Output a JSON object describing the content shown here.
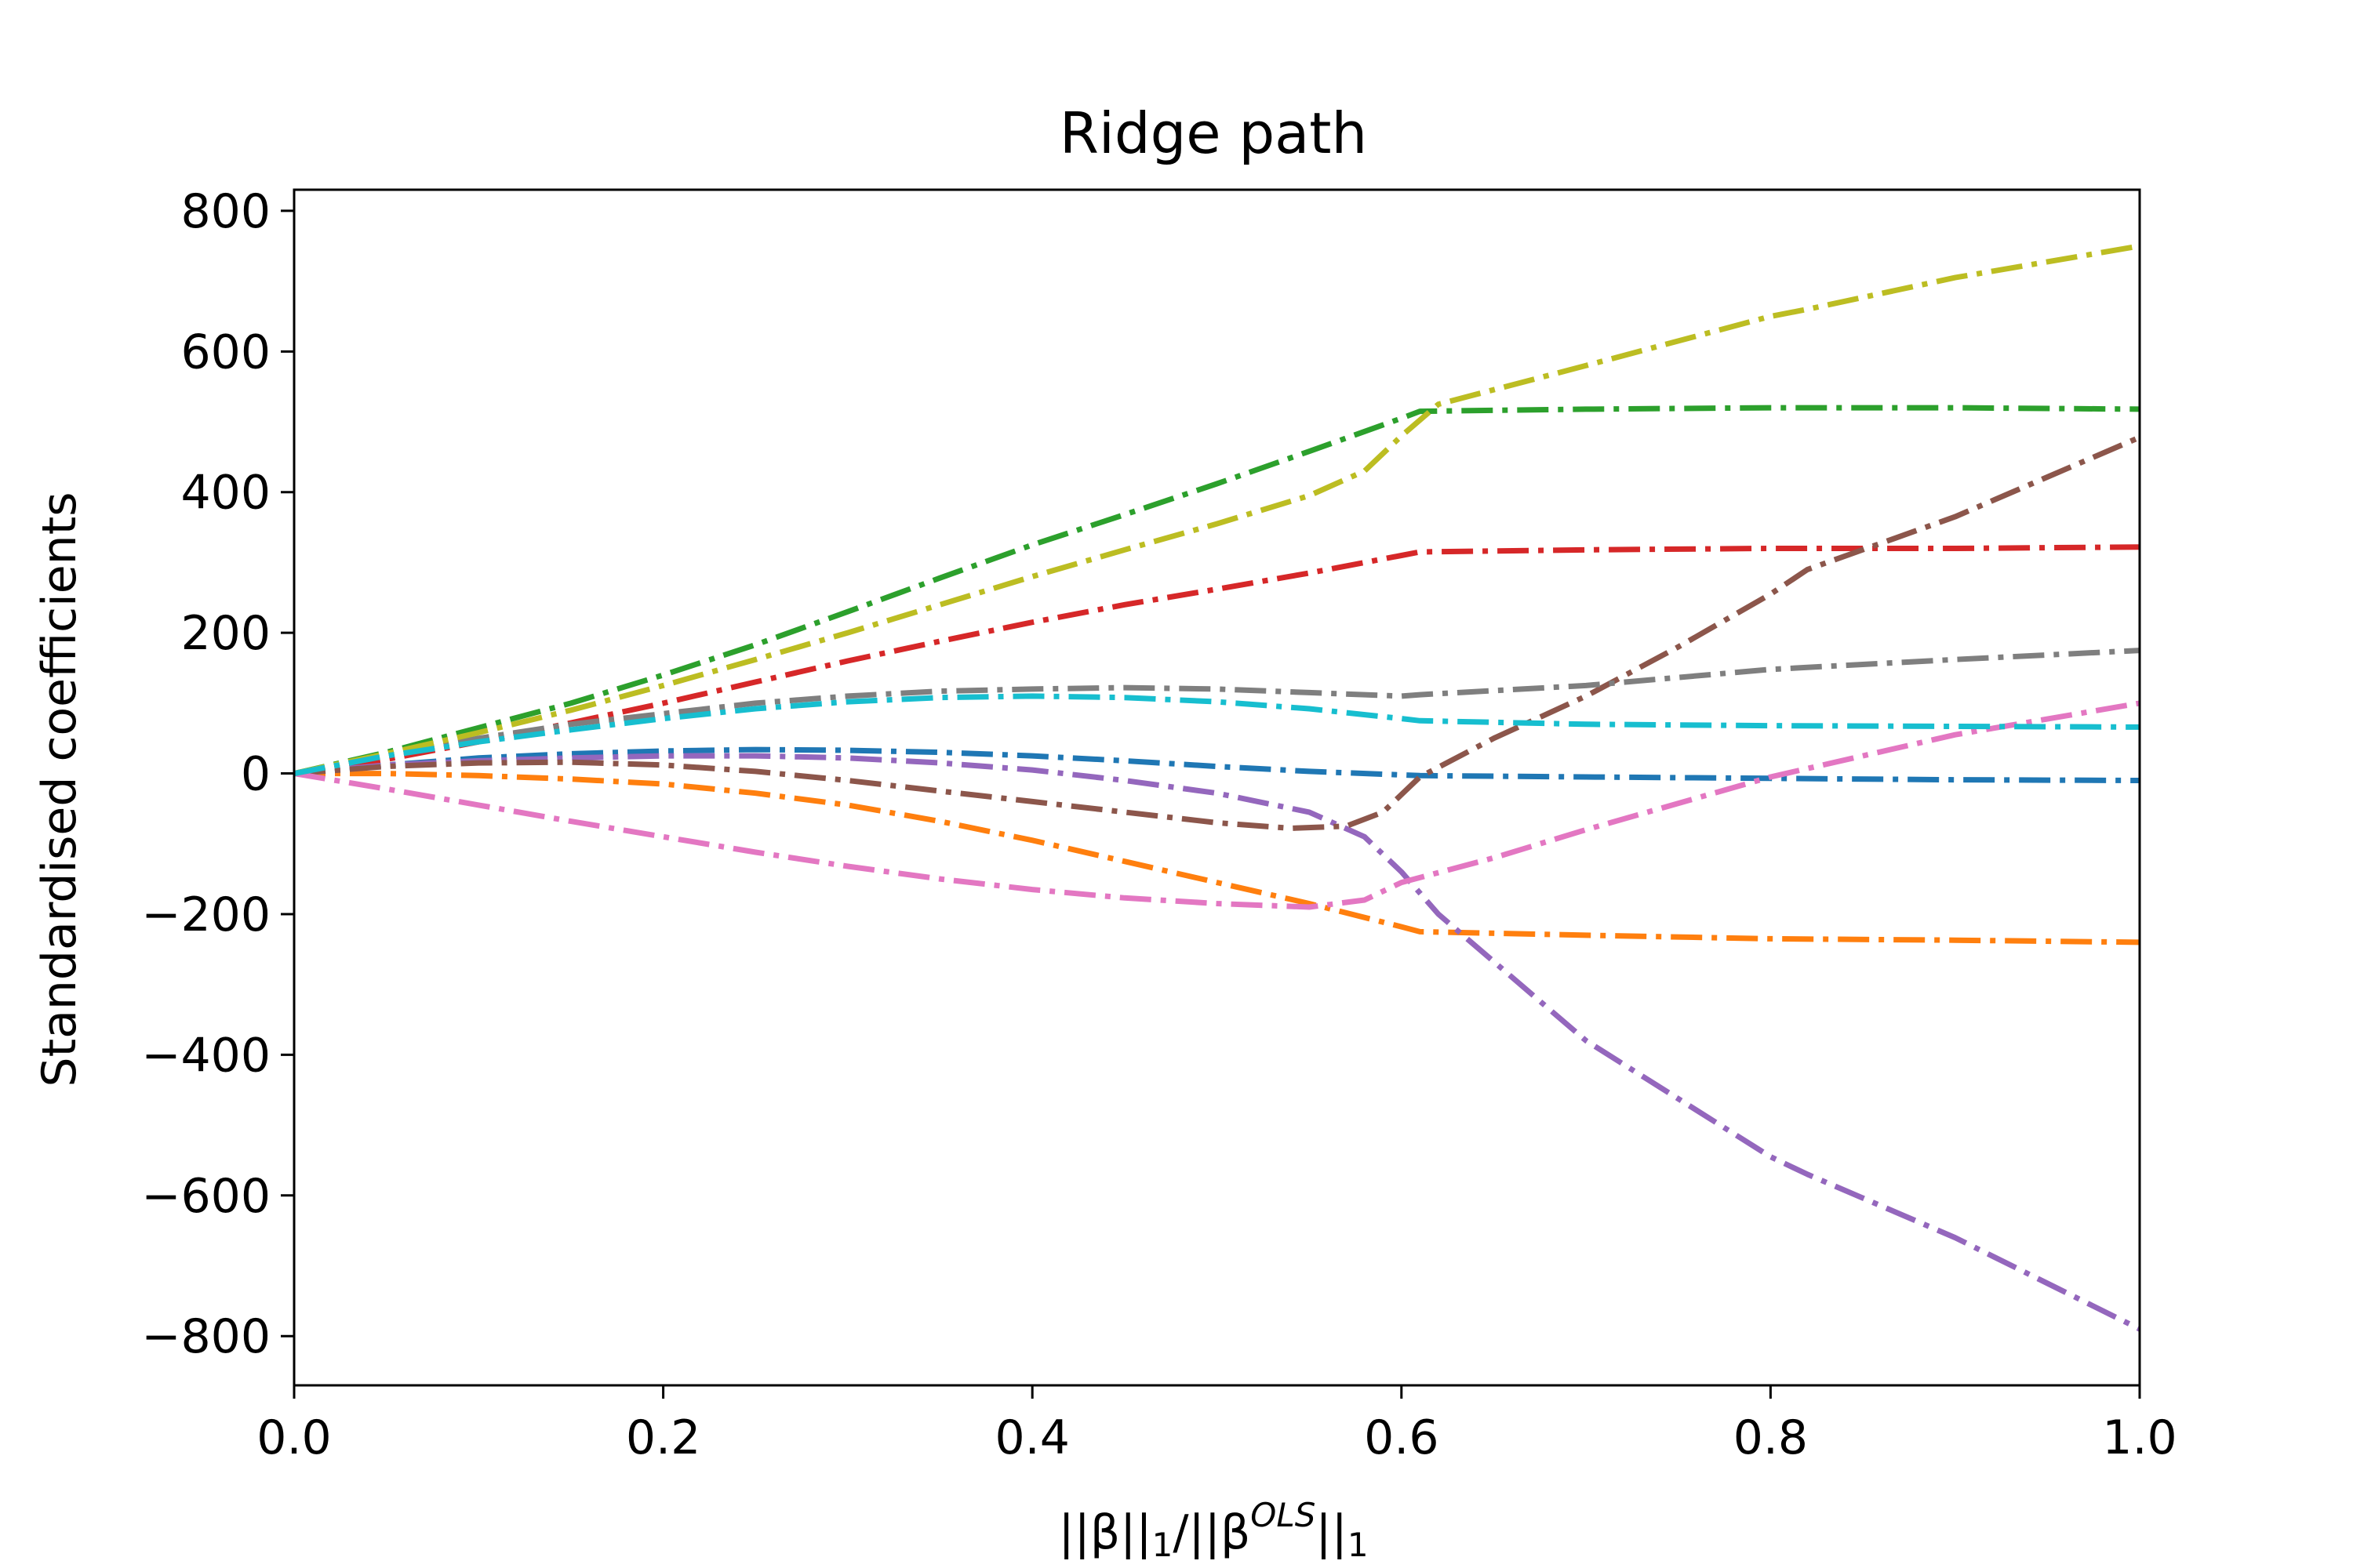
{
  "chart_data": {
    "type": "line",
    "title": "Ridge path",
    "ylabel": "Standardised coefficients",
    "xlabel": {
      "base": "||β||",
      "sub1": "1",
      "mid": "/||β",
      "sup": "OLS",
      "end": "||",
      "sub2": "1"
    },
    "xlim": [
      0.0,
      1.0
    ],
    "ylim": [
      -870,
      830
    ],
    "xticks": [
      0.0,
      0.2,
      0.4,
      0.6,
      0.8,
      1.0
    ],
    "xtick_labels": [
      "0.0",
      "0.2",
      "0.4",
      "0.6",
      "0.8",
      "1.0"
    ],
    "yticks": [
      800,
      600,
      400,
      200,
      0,
      -200,
      -400,
      -600,
      -800
    ],
    "ytick_labels": [
      "800",
      "600",
      "400",
      "200",
      "0",
      "−200",
      "−400",
      "−600",
      "−800"
    ],
    "grid": false,
    "line_style": "dash-dot",
    "series": [
      {
        "color": "#1f77b4",
        "x": [
          0,
          0.05,
          0.1,
          0.15,
          0.2,
          0.25,
          0.3,
          0.35,
          0.4,
          0.45,
          0.5,
          0.55,
          0.6,
          0.61,
          0.7,
          0.8,
          0.9,
          1.0
        ],
        "y": [
          0,
          12,
          22,
          28,
          32,
          34,
          33,
          30,
          25,
          18,
          10,
          3,
          -2,
          -3,
          -5,
          -7,
          -9,
          -10
        ]
      },
      {
        "color": "#ff7f0e",
        "x": [
          0,
          0.05,
          0.1,
          0.15,
          0.2,
          0.25,
          0.3,
          0.35,
          0.4,
          0.45,
          0.5,
          0.55,
          0.6,
          0.61,
          0.7,
          0.8,
          0.9,
          1.0
        ],
        "y": [
          0,
          0,
          -3,
          -8,
          -15,
          -28,
          -45,
          -68,
          -95,
          -125,
          -155,
          -185,
          -218,
          -225,
          -230,
          -235,
          -237,
          -240
        ]
      },
      {
        "color": "#2ca02c",
        "x": [
          0,
          0.05,
          0.1,
          0.15,
          0.2,
          0.25,
          0.3,
          0.35,
          0.4,
          0.45,
          0.5,
          0.55,
          0.6,
          0.61,
          0.7,
          0.8,
          0.9,
          1.0
        ],
        "y": [
          0,
          30,
          65,
          100,
          140,
          183,
          230,
          278,
          325,
          368,
          412,
          458,
          505,
          515,
          518,
          520,
          520,
          518
        ]
      },
      {
        "color": "#d62728",
        "x": [
          0,
          0.05,
          0.1,
          0.15,
          0.2,
          0.25,
          0.3,
          0.35,
          0.4,
          0.45,
          0.5,
          0.55,
          0.6,
          0.61,
          0.7,
          0.8,
          0.9,
          1.0
        ],
        "y": [
          0,
          20,
          45,
          72,
          100,
          130,
          160,
          188,
          215,
          240,
          262,
          285,
          310,
          315,
          318,
          320,
          320,
          322
        ]
      },
      {
        "color": "#9467bd",
        "x": [
          0,
          0.05,
          0.1,
          0.15,
          0.2,
          0.25,
          0.3,
          0.35,
          0.4,
          0.45,
          0.5,
          0.55,
          0.58,
          0.6,
          0.62,
          0.7,
          0.8,
          0.82,
          0.9,
          1.0
        ],
        "y": [
          0,
          12,
          18,
          22,
          25,
          25,
          22,
          15,
          5,
          -10,
          -28,
          -55,
          -90,
          -140,
          -200,
          -380,
          -545,
          -570,
          -660,
          -790
        ]
      },
      {
        "color": "#8c564b",
        "x": [
          0,
          0.05,
          0.1,
          0.15,
          0.2,
          0.25,
          0.3,
          0.35,
          0.4,
          0.45,
          0.5,
          0.54,
          0.57,
          0.59,
          0.61,
          0.65,
          0.7,
          0.75,
          0.8,
          0.82,
          0.9,
          1.0
        ],
        "y": [
          0,
          10,
          15,
          16,
          12,
          3,
          -10,
          -25,
          -40,
          -55,
          -70,
          -78,
          -75,
          -55,
          -5,
          50,
          110,
          180,
          255,
          290,
          365,
          478
        ]
      },
      {
        "color": "#e377c2",
        "x": [
          0,
          0.05,
          0.1,
          0.15,
          0.2,
          0.25,
          0.3,
          0.35,
          0.4,
          0.45,
          0.5,
          0.55,
          0.58,
          0.6,
          0.65,
          0.7,
          0.8,
          0.9,
          1.0
        ],
        "y": [
          0,
          -22,
          -45,
          -68,
          -90,
          -112,
          -132,
          -150,
          -165,
          -177,
          -185,
          -190,
          -180,
          -155,
          -120,
          -80,
          -5,
          55,
          100
        ]
      },
      {
        "color": "#7f7f7f",
        "x": [
          0,
          0.05,
          0.1,
          0.15,
          0.2,
          0.25,
          0.3,
          0.35,
          0.4,
          0.45,
          0.5,
          0.55,
          0.6,
          0.61,
          0.7,
          0.8,
          0.9,
          1.0
        ],
        "y": [
          0,
          25,
          50,
          70,
          85,
          100,
          110,
          117,
          120,
          122,
          120,
          115,
          110,
          112,
          125,
          148,
          162,
          175
        ]
      },
      {
        "color": "#bcbd22",
        "x": [
          0,
          0.05,
          0.1,
          0.15,
          0.2,
          0.25,
          0.3,
          0.35,
          0.4,
          0.45,
          0.5,
          0.55,
          0.58,
          0.6,
          0.62,
          0.7,
          0.8,
          0.82,
          0.9,
          1.0
        ],
        "y": [
          0,
          28,
          58,
          90,
          125,
          162,
          200,
          240,
          280,
          318,
          355,
          395,
          430,
          480,
          525,
          580,
          650,
          660,
          705,
          750
        ]
      },
      {
        "color": "#17becf",
        "x": [
          0,
          0.05,
          0.1,
          0.15,
          0.2,
          0.25,
          0.3,
          0.35,
          0.4,
          0.45,
          0.5,
          0.55,
          0.6,
          0.61,
          0.7,
          0.8,
          0.9,
          1.0
        ],
        "y": [
          0,
          25,
          45,
          62,
          78,
          92,
          102,
          108,
          110,
          108,
          102,
          92,
          78,
          75,
          70,
          68,
          67,
          66
        ]
      }
    ]
  }
}
